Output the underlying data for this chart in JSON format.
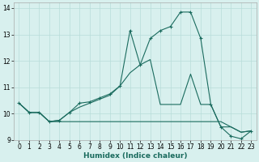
{
  "xlabel": "Humidex (Indice chaleur)",
  "x": [
    0,
    1,
    2,
    3,
    4,
    5,
    6,
    7,
    8,
    9,
    10,
    11,
    12,
    13,
    14,
    15,
    16,
    17,
    18,
    19,
    20,
    21,
    22,
    23
  ],
  "line_top": [
    10.4,
    10.05,
    10.05,
    9.7,
    9.75,
    10.05,
    10.4,
    10.45,
    10.6,
    10.75,
    11.05,
    13.15,
    11.85,
    12.85,
    13.15,
    13.3,
    13.85,
    13.85,
    12.85,
    10.35,
    9.5,
    9.15,
    9.05,
    9.35
  ],
  "line_mid": [
    10.4,
    10.05,
    10.05,
    9.7,
    9.75,
    10.05,
    10.25,
    10.4,
    10.55,
    10.7,
    11.05,
    11.55,
    11.85,
    12.05,
    10.35,
    10.35,
    10.35,
    11.5,
    10.35,
    10.35,
    9.5,
    9.5,
    9.3,
    9.35
  ],
  "line_bot": [
    10.4,
    10.05,
    10.05,
    9.7,
    9.7,
    9.7,
    9.7,
    9.7,
    9.7,
    9.7,
    9.7,
    9.7,
    9.7,
    9.7,
    9.7,
    9.7,
    9.7,
    9.7,
    9.7,
    9.7,
    9.7,
    9.5,
    9.3,
    9.35
  ],
  "line_color": "#1a6b5e",
  "bg_color": "#d8f0ee",
  "grid_color": "#b8ddd9",
  "ylim": [
    9.0,
    14.2
  ],
  "xlim": [
    -0.5,
    23.5
  ],
  "yticks": [
    9,
    10,
    11,
    12,
    13,
    14
  ],
  "xticks": [
    0,
    1,
    2,
    3,
    4,
    5,
    6,
    7,
    8,
    9,
    10,
    11,
    12,
    13,
    14,
    15,
    16,
    17,
    18,
    19,
    20,
    21,
    22,
    23
  ]
}
